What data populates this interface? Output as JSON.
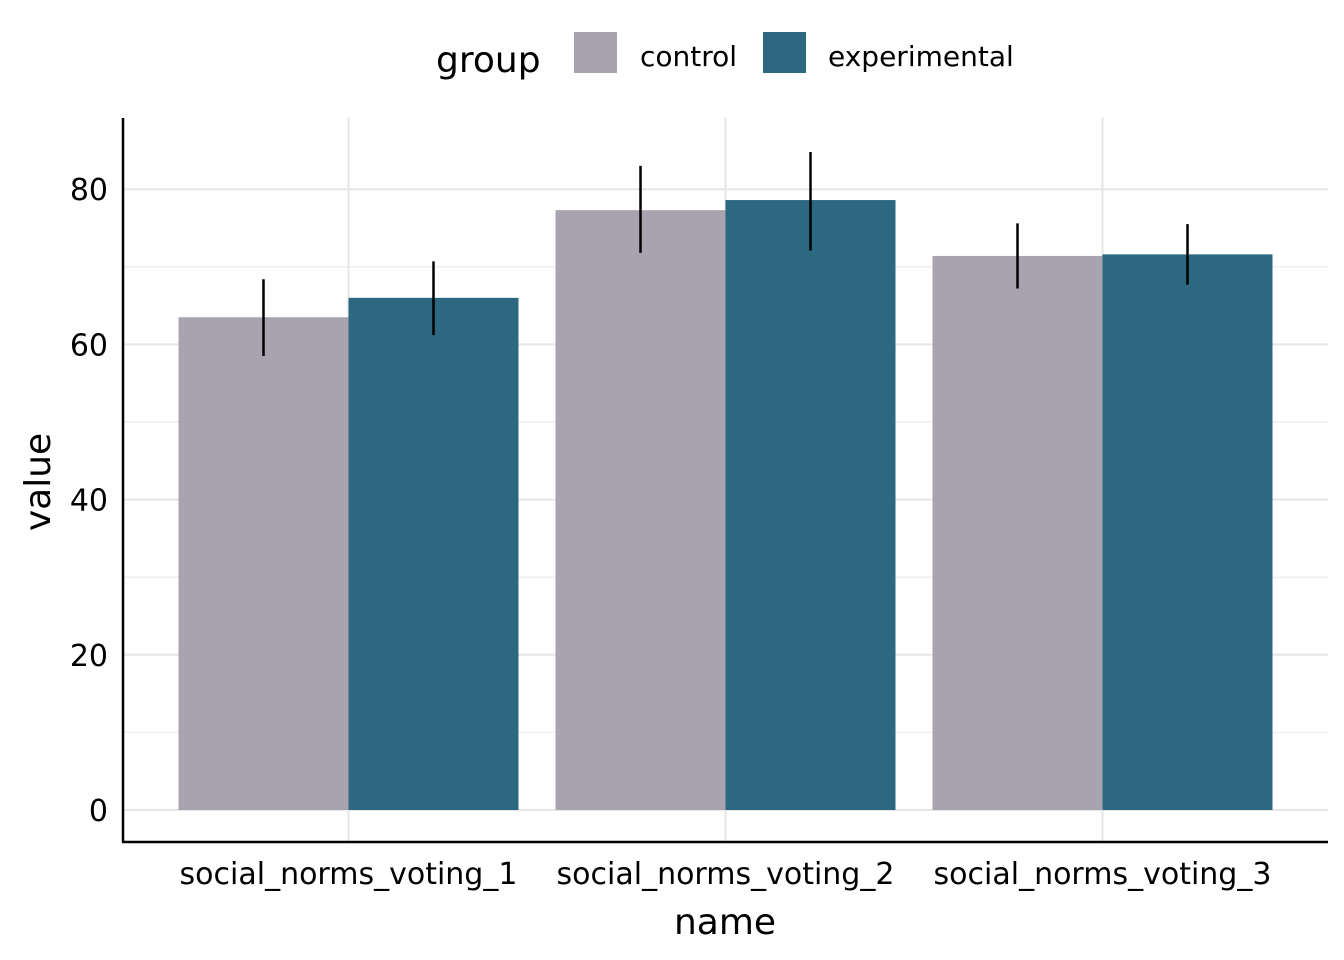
{
  "chart_data": {
    "type": "bar",
    "title": "",
    "xlabel": "name",
    "ylabel": "value",
    "categories": [
      "social_norms_voting_1",
      "social_norms_voting_2",
      "social_norms_voting_3"
    ],
    "series": [
      {
        "name": "control",
        "color": "#A9A3AF",
        "values": [
          63.5,
          77.3,
          71.4
        ],
        "error_low": [
          58.5,
          71.8,
          67.2
        ],
        "error_high": [
          68.4,
          83.0,
          75.6
        ]
      },
      {
        "name": "experimental",
        "color": "#2C6880",
        "values": [
          66.0,
          78.6,
          71.6
        ],
        "error_low": [
          61.2,
          72.1,
          67.7
        ],
        "error_high": [
          70.7,
          84.8,
          75.5
        ]
      }
    ],
    "ylim": [
      0,
      89
    ],
    "yticks": [
      0,
      20,
      40,
      60,
      80
    ],
    "ytick_labels": [
      "0",
      "20",
      "40",
      "60",
      "80"
    ],
    "grid": true,
    "legend": {
      "title": "group",
      "position": "top",
      "entries": [
        "control",
        "experimental"
      ]
    }
  }
}
